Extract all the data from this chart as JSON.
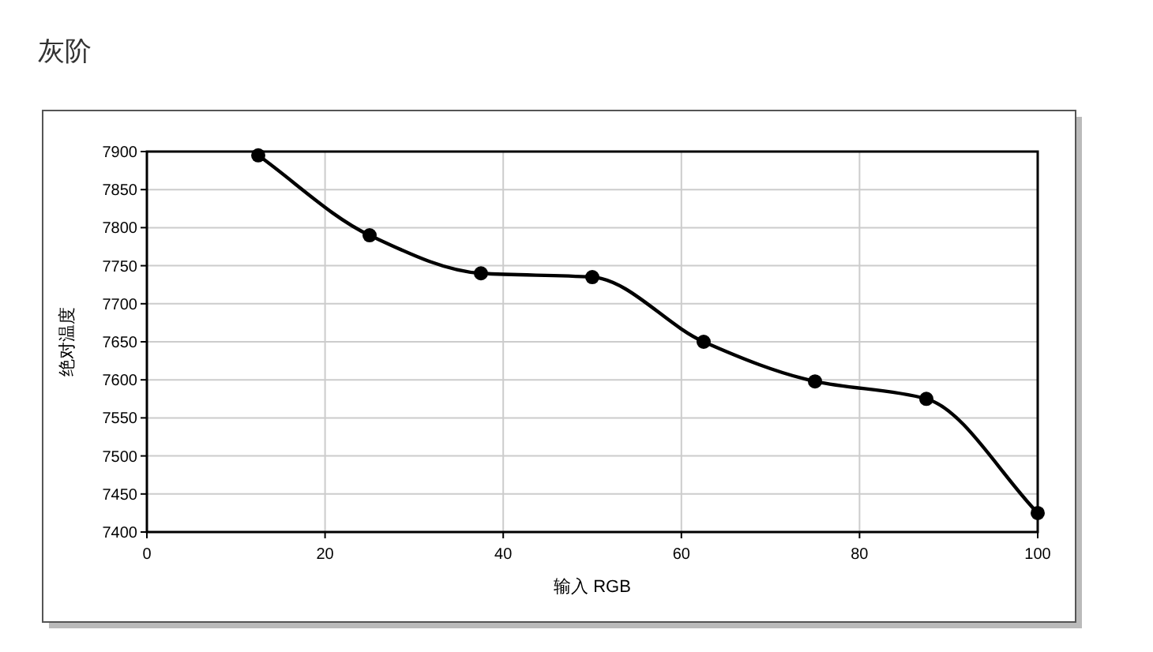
{
  "chart_data": {
    "type": "line",
    "title": "灰阶",
    "xlabel": "输入 RGB",
    "ylabel": "绝对温度",
    "x": [
      12.5,
      25,
      37.5,
      50,
      62.5,
      75,
      87.5,
      100
    ],
    "series": [
      {
        "color": "#000000",
        "values": [
          7895,
          7790,
          7740,
          7735,
          7650,
          7598,
          7575,
          7425
        ]
      }
    ],
    "xlim": [
      0,
      100
    ],
    "xticks": [
      0,
      20,
      40,
      60,
      80,
      100
    ],
    "ylim": [
      7400,
      7900
    ],
    "yticks": [
      7400,
      7450,
      7500,
      7550,
      7600,
      7650,
      7700,
      7750,
      7800,
      7850,
      7900
    ],
    "grid": true,
    "marker": "circle",
    "line_style": "solid"
  }
}
